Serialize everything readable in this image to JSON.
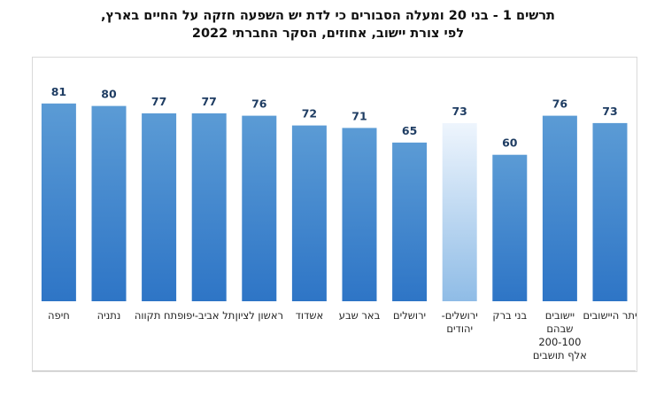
{
  "chart_data": {
    "type": "bar",
    "title_lines": [
      "תרשים 1 - בני 20 ומעלה הסבורים כי לדת יש השפעה חזקה על החיים בארץ,",
      "לפי צורת יישוב, אחוזים, הסקר החברתי 2022"
    ],
    "categories": [
      [
        "יתר היישובים"
      ],
      [
        "יישובים",
        "שבהם",
        "200-100",
        "אלף תושבים"
      ],
      [
        "בני ברק"
      ],
      [
        "ירושלים-",
        "יהודים"
      ],
      [
        "ירושלים"
      ],
      [
        "באר שבע"
      ],
      [
        "אשדוד"
      ],
      [
        "ראשון לציון"
      ],
      [
        "תל אביב-יפו"
      ],
      [
        "פתח תקווה"
      ],
      [
        "נתניה"
      ],
      [
        "חיפה"
      ]
    ],
    "values": [
      73,
      76,
      60,
      73,
      65,
      71,
      72,
      76,
      77,
      77,
      80,
      81
    ],
    "highlight_index": 3,
    "ylim": [
      0,
      100
    ],
    "direction": "rtl",
    "grid": false,
    "colors": {
      "bar_top": "#5b9bd5",
      "bar_bottom": "#2e75c6",
      "highlight_top": "#eef5fd",
      "highlight_bottom": "#8fbce6",
      "value_label": "#1f3d63"
    }
  }
}
